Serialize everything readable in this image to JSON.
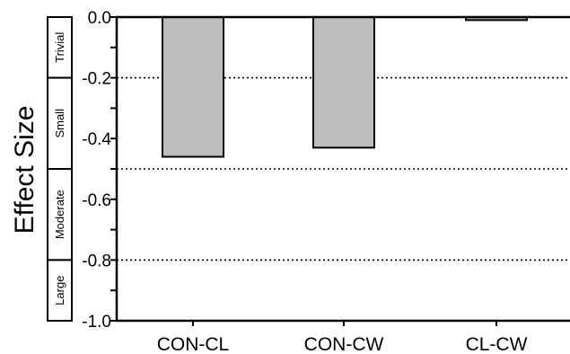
{
  "chart_data": {
    "type": "bar",
    "ylabel": "Effect  Size",
    "xlabel": "",
    "categories": [
      "CON-CL",
      "CON-CW",
      "CL-CW"
    ],
    "values": [
      -0.46,
      -0.43,
      -0.01
    ],
    "ylim": [
      -1.0,
      0.0
    ],
    "yticks": [
      0.0,
      -0.2,
      -0.4,
      -0.6,
      -0.8,
      -1.0
    ],
    "ytick_labels": [
      "0.0",
      "-0.2",
      "-0.4",
      "-0.6",
      "-0.8",
      "-1.0"
    ],
    "bar_color": "#bdbdbd",
    "reference_lines": [
      {
        "value": -0.2,
        "style": "dotted"
      },
      {
        "value": -0.5,
        "style": "dotted"
      },
      {
        "value": -0.8,
        "style": "dotted"
      }
    ],
    "effect_bands": [
      {
        "label": "Trivial",
        "from": 0.0,
        "to": -0.2
      },
      {
        "label": "Small",
        "from": -0.2,
        "to": -0.5
      },
      {
        "label": "Moderate",
        "from": -0.5,
        "to": -0.8
      },
      {
        "label": "Large",
        "from": -0.8,
        "to": -1.0
      }
    ]
  }
}
